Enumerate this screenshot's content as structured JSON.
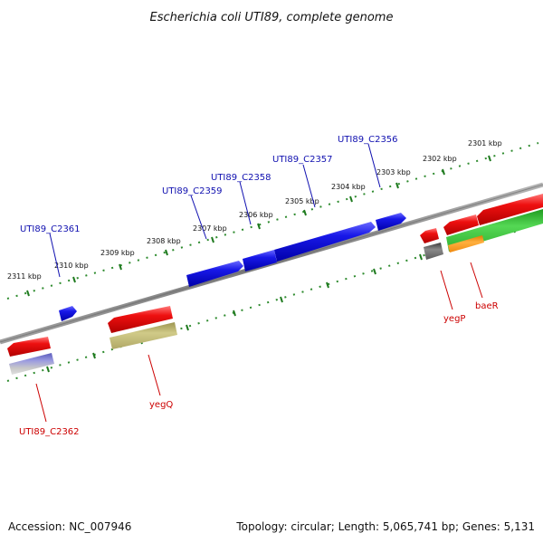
{
  "title": "Escherichia coli UTI89, complete genome",
  "footer": {
    "accession": "Accession: NC_007946",
    "topology": "Topology: circular; Length: 5,065,741 bp; Genes: 5,131"
  },
  "colors": {
    "backbone": "#8a8a8a",
    "ruler": "#2e8b2e",
    "forward_cds": "#1515e0",
    "reverse_cds": "#e01010",
    "blue_label": "#1010b0",
    "red_label": "#cc0000",
    "olive": "#bdb66e",
    "green": "#44c844",
    "orange": "#ff9a1a",
    "dark_gray": "#707070",
    "purple": "#7a7acc"
  },
  "ruler_labels": [
    "2301 kbp",
    "2302 kbp",
    "2303 kbp",
    "2304 kbp",
    "2305 kbp",
    "2306 kbp",
    "2307 kbp",
    "2308 kbp",
    "2309 kbp",
    "2310 kbp",
    "2311 kbp"
  ],
  "gene_labels_top": [
    "UTI89_C2356",
    "UTI89_C2357",
    "UTI89_C2358",
    "UTI89_C2359",
    "UTI89_C2361"
  ],
  "gene_labels_bottom": [
    "UTI89_C2362",
    "yegQ",
    "yegP",
    "baeR"
  ]
}
